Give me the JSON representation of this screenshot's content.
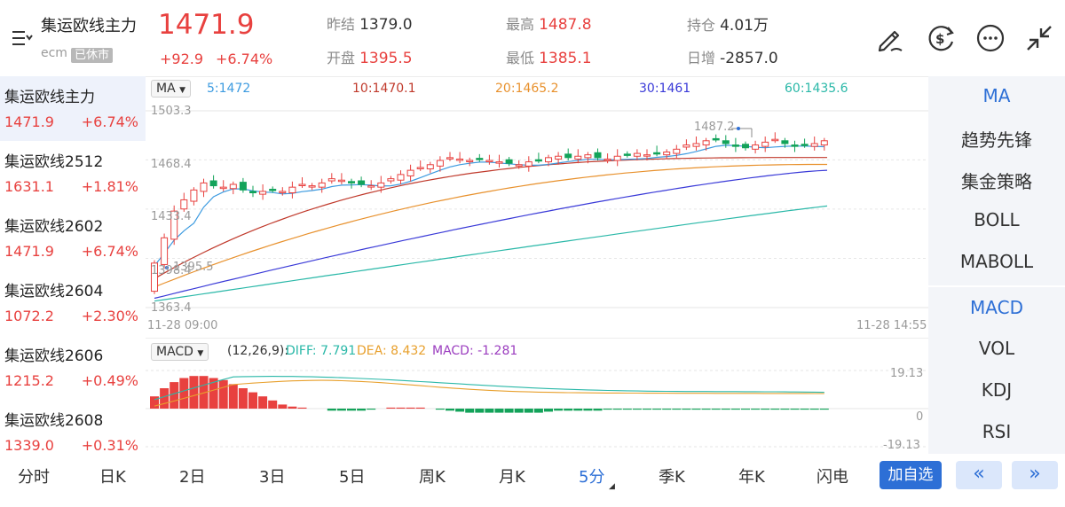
{
  "header": {
    "title": "集运欧线主力",
    "exchange": "ecm",
    "status": "已休市",
    "price": "1471.9",
    "change": "+92.9",
    "change_pct": "+6.74%",
    "stats": [
      {
        "label": "昨结",
        "value": "1379.0",
        "tone": "dark"
      },
      {
        "label": "最高",
        "value": "1487.8",
        "tone": "red"
      },
      {
        "label": "持仓",
        "value": "4.01万",
        "tone": "dark"
      },
      {
        "label": "开盘",
        "value": "1395.5",
        "tone": "red"
      },
      {
        "label": "最低",
        "value": "1385.1",
        "tone": "red"
      },
      {
        "label": "日增",
        "value": "-2857.0",
        "tone": "dark"
      }
    ]
  },
  "sidebar": {
    "items": [
      {
        "name": "集运欧线主力",
        "price": "1471.9",
        "change": "+6.74%"
      },
      {
        "name": "集运欧线2512",
        "price": "1631.1",
        "change": "+1.81%"
      },
      {
        "name": "集运欧线2602",
        "price": "1471.9",
        "change": "+6.74%"
      },
      {
        "name": "集运欧线2604",
        "price": "1072.2",
        "change": "+2.30%"
      },
      {
        "name": "集运欧线2606",
        "price": "1215.2",
        "change": "+0.49%"
      },
      {
        "name": "集运欧线2608",
        "price": "1339.0",
        "change": "+0.31%"
      }
    ]
  },
  "main_chart": {
    "indicator": "MA",
    "ma_labels": [
      {
        "text": "5:1472",
        "color": "#3d9be0"
      },
      {
        "text": "10:1470.1",
        "color": "#c0392b"
      },
      {
        "text": "20:1465.2",
        "color": "#e8912d"
      },
      {
        "text": "30:1461",
        "color": "#3a3ad8"
      },
      {
        "text": "60:1435.6",
        "color": "#2ab8a8"
      }
    ],
    "y_ticks": [
      "1503.3",
      "1468.4",
      "1433.4",
      "1398.4",
      "1363.4"
    ],
    "time_start": "11-28 09:00",
    "time_end": "11-28 14:55",
    "max_label": "1487.2",
    "min_label": "1395.5",
    "colors": {
      "up": "#e8413f",
      "down": "#13a35a"
    }
  },
  "sub_chart": {
    "indicator": "MACD",
    "params": "(12,26,9):",
    "diff": "DIFF: 7.791",
    "dea": "DEA: 8.432",
    "macd": "MACD: -1.281",
    "y_ticks": [
      "19.13",
      "0",
      "-19.13"
    ],
    "colors": {
      "diff": "#2ab8a8",
      "dea": "#e8a02d",
      "macd": "#9b3dbf"
    }
  },
  "indicators": {
    "main": [
      "MA",
      "趋势先锋",
      "集金策略",
      "BOLL",
      "MABOLL"
    ],
    "sub": [
      "MACD",
      "VOL",
      "KDJ",
      "RSI"
    ]
  },
  "bottom": {
    "tabs": [
      "分时",
      "日K",
      "2日",
      "3日",
      "5日",
      "周K",
      "月K",
      "5分",
      "季K",
      "年K",
      "闪电"
    ],
    "active": "5分",
    "add_label": "加自选",
    "prev_label": "«",
    "next_label": "»"
  }
}
